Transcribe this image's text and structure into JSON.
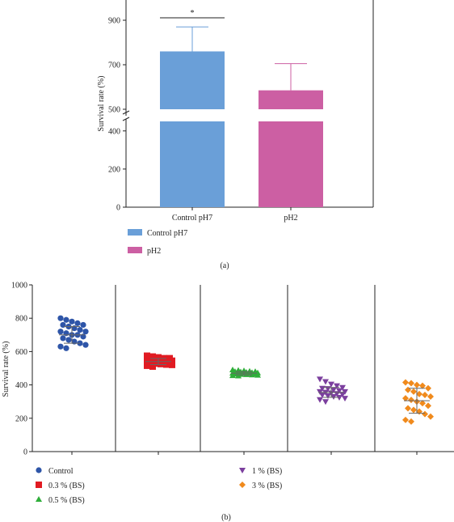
{
  "chart_data": [
    {
      "type": "bar",
      "panel_label": "(a)",
      "categories": [
        "Control pH7",
        "pH2"
      ],
      "values": [
        760,
        585
      ],
      "errors": [
        110,
        120
      ],
      "ylabel": "Survival rate (%)",
      "y_ticks": [
        "0",
        "200",
        "400",
        "500",
        "700",
        "900"
      ],
      "y_axis_break": [
        450,
        500
      ],
      "significance_label": "*",
      "legend": [
        {
          "label": "Control pH7",
          "color": "#6a9fd8"
        },
        {
          "label": "pH2",
          "color": "#cc5fa3"
        }
      ],
      "grid": false,
      "legend_placement": "bottom"
    },
    {
      "type": "scatter",
      "panel_label": "(b)",
      "ylabel": "Survival rate (%)",
      "ylim": [
        0,
        1000
      ],
      "y_ticks": [
        "0",
        "200",
        "400",
        "600",
        "800",
        "1000"
      ],
      "grid": false,
      "legend_placement": "bottom",
      "series": [
        {
          "name": "Control",
          "color": "#2e55a8",
          "marker": "circle",
          "mean": 700,
          "sd": 50,
          "values": [
            800,
            790,
            780,
            770,
            760,
            750,
            740,
            730,
            720,
            710,
            700,
            700,
            690,
            680,
            670,
            660,
            650,
            640,
            630,
            620,
            760,
            720
          ]
        },
        {
          "name": "0.3 % (BS)",
          "color": "#e11b22",
          "marker": "square",
          "mean": 540,
          "sd": 18,
          "values": [
            575,
            570,
            565,
            560,
            555,
            550,
            548,
            545,
            542,
            540,
            538,
            535,
            532,
            530,
            528,
            525,
            522,
            520,
            515,
            510,
            560,
            550
          ]
        },
        {
          "name": "0.5 % (BS)",
          "color": "#2fae3a",
          "marker": "triangle",
          "mean": 470,
          "sd": 10,
          "values": [
            490,
            487,
            485,
            482,
            480,
            478,
            476,
            474,
            472,
            470,
            469,
            468,
            466,
            465,
            463,
            462,
            460,
            458,
            456,
            454,
            480,
            470
          ]
        },
        {
          "name": "1 % (BS)",
          "color": "#7b3f9e",
          "marker": "triangle-down",
          "mean": 355,
          "sd": 30,
          "values": [
            435,
            420,
            405,
            395,
            385,
            378,
            372,
            366,
            360,
            356,
            352,
            348,
            344,
            340,
            335,
            330,
            325,
            320,
            312,
            300,
            380,
            360
          ]
        },
        {
          "name": "3 % (BS)",
          "color": "#f08a1c",
          "marker": "diamond",
          "mean": 305,
          "sd": 75,
          "values": [
            415,
            410,
            400,
            395,
            380,
            370,
            360,
            345,
            330,
            320,
            310,
            300,
            290,
            275,
            260,
            250,
            240,
            225,
            210,
            190,
            180,
            340
          ]
        }
      ]
    }
  ]
}
